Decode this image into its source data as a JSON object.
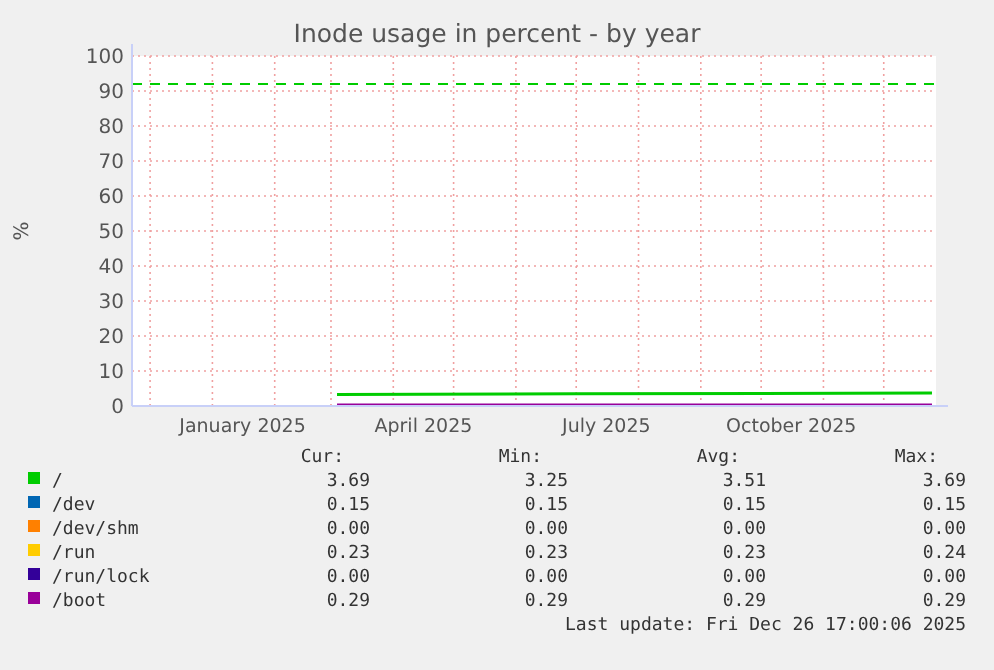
{
  "chart_data": {
    "type": "line",
    "title": "Inode usage in percent - by year",
    "ylabel": "%",
    "xlim": [
      "2024-11-22",
      "2025-12-27"
    ],
    "ylim": [
      0,
      100
    ],
    "yticks": [
      0,
      10,
      20,
      30,
      40,
      50,
      60,
      70,
      80,
      90,
      100
    ],
    "xticks": [
      {
        "value": "2024-12-01",
        "label": null
      },
      {
        "value": "2025-01-01",
        "label": null
      },
      {
        "value": "2025-01-16",
        "label": "January 2025"
      },
      {
        "value": "2025-02-01",
        "label": null
      },
      {
        "value": "2025-03-01",
        "label": null
      },
      {
        "value": "2025-04-01",
        "label": null
      },
      {
        "value": "2025-04-16",
        "label": "April 2025"
      },
      {
        "value": "2025-05-01",
        "label": null
      },
      {
        "value": "2025-06-01",
        "label": null
      },
      {
        "value": "2025-07-01",
        "label": null
      },
      {
        "value": "2025-07-16",
        "label": "July 2025"
      },
      {
        "value": "2025-08-01",
        "label": null
      },
      {
        "value": "2025-09-01",
        "label": null
      },
      {
        "value": "2025-10-01",
        "label": null
      },
      {
        "value": "2025-10-16",
        "label": "October 2025"
      },
      {
        "value": "2025-11-01",
        "label": null
      },
      {
        "value": "2025-12-01",
        "label": null
      }
    ],
    "grid": true,
    "legend": "bottom",
    "line_style": "solid",
    "marker": "none",
    "ref_lines": [
      {
        "axis": "y",
        "value": 92,
        "color": "#00cc00",
        "line_style": "dashed"
      }
    ],
    "series": [
      {
        "name": "/",
        "color": "#00cc00",
        "x": [
          "2025-03-04",
          "2025-07-01",
          "2025-12-25"
        ],
        "values": [
          3.3,
          3.5,
          3.7
        ]
      },
      {
        "name": "/dev",
        "color": "#0066b3"
      },
      {
        "name": "/dev/shm",
        "color": "#ff8000"
      },
      {
        "name": "/run",
        "color": "#ffcc00"
      },
      {
        "name": "/run/lock",
        "color": "#330099"
      },
      {
        "name": "/boot",
        "color": "#990099",
        "x": [
          "2025-03-04",
          "2025-12-25"
        ],
        "values": [
          0.3,
          0.3
        ]
      }
    ],
    "annotations": [
      "Cur:",
      "Min:",
      "Avg:",
      "Max:",
      "3.69",
      "3.25",
      "3.51",
      "3.69",
      "0.15",
      "0.15",
      "0.15",
      "0.15",
      "0.00",
      "0.00",
      "0.00",
      "0.00",
      "0.23",
      "0.23",
      "0.23",
      "0.24",
      "0.00",
      "0.00",
      "0.00",
      "0.00",
      "0.29",
      "0.29",
      "0.29",
      "0.29",
      "Last update: Fri Dec 26 17:00:06 2025"
    ]
  }
}
